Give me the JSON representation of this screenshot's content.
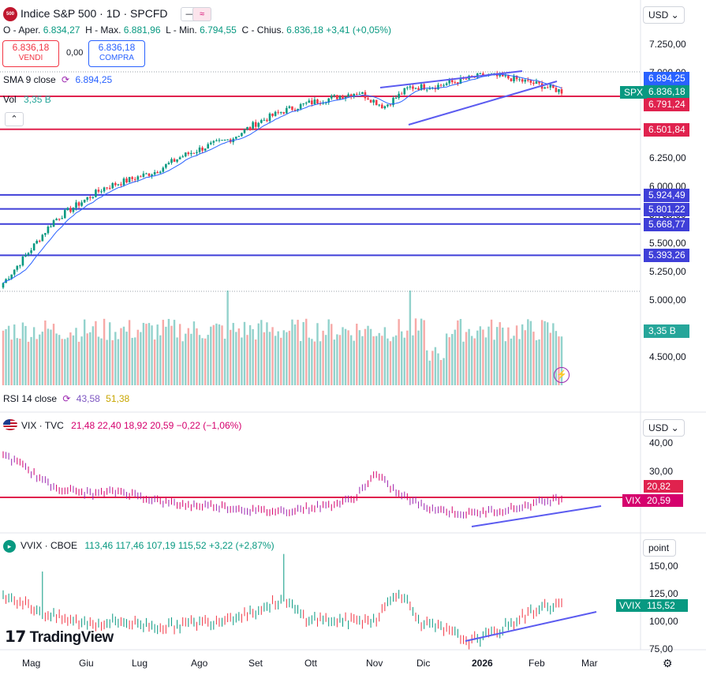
{
  "header": {
    "logo_text": "500",
    "title": "Indice S&P 500 · 1D · SPCFD",
    "currency": "USD",
    "ohlc": {
      "o_label": "O - Aper.",
      "o": "6.834,27",
      "h_label": "H - Max.",
      "h": "6.881,96",
      "l_label": "L - Min.",
      "l": "6.794,55",
      "c_label": "C - Chius.",
      "c": "6.836,18",
      "chg": "+3,41 (+0,05%)"
    },
    "sell": {
      "price": "6.836,18",
      "label": "VENDI"
    },
    "buy": {
      "price": "6.836,18",
      "label": "COMPRA"
    },
    "spread": "0,00",
    "sma_label": "SMA 9 close",
    "sma_value": "6.894,25",
    "vol_label": "Vol",
    "vol_value": "3,35 B"
  },
  "rsi": {
    "label": "RSI 14 close",
    "v1": "43,58",
    "v2": "51,38"
  },
  "vix_header": {
    "title": "VIX · TVC",
    "values": "21,48  22,40  18,92  20,59  −0,22 (−1,06%)",
    "currency": "USD"
  },
  "vvix_header": {
    "title": "VVIX · CBOE",
    "values": "113,46  117,46  107,19  115,52  +3,22 (+2,87%)",
    "unit": "point"
  },
  "price_axis": [
    "7.250,00",
    "7.000,00",
    "6.750,00",
    "6.500,00",
    "6.250,00",
    "6.000,00",
    "5.750,00",
    "5.500,00",
    "5.250,00",
    "5.000,00",
    "4.750,00",
    "4.500,00"
  ],
  "price_tags": [
    {
      "text": "6.894,25",
      "color": "#2962ff",
      "kind": "sma"
    },
    {
      "text": "6.836,18",
      "color": "#089981",
      "kind": "last"
    },
    {
      "text": "6.791,24",
      "color": "#e0224e",
      "kind": "level"
    },
    {
      "text": "6.501,84",
      "color": "#e0224e",
      "kind": "level"
    },
    {
      "text": "5.924,49",
      "color": "#3f3fd8",
      "kind": "level"
    },
    {
      "text": "5.801,22",
      "color": "#3f3fd8",
      "kind": "level"
    },
    {
      "text": "5.668,77",
      "color": "#3f3fd8",
      "kind": "level"
    },
    {
      "text": "5.393,26",
      "color": "#3f3fd8",
      "kind": "level"
    },
    {
      "text": "3,35 B",
      "color": "#26a69a",
      "kind": "volume"
    }
  ],
  "symbol_tags": {
    "spx": "SPX",
    "vix": "VIX",
    "vvix": "VVIX"
  },
  "vix_axis": [
    "40,00",
    "30,00"
  ],
  "vix_tags": [
    "20,82",
    "20,59"
  ],
  "vvix_axis": [
    "150,00",
    "125,00",
    "100,00",
    "75,00"
  ],
  "vvix_tag": "115,52",
  "x_axis": [
    "Mag",
    "Giu",
    "Lug",
    "Ago",
    "Set",
    "Ott",
    "Nov",
    "Dic",
    "2026",
    "Feb",
    "Mar"
  ],
  "watermark": "TradingView",
  "colors": {
    "up": "#089981",
    "down": "#f23645",
    "level_red": "#e0224e",
    "level_blue": "#3f3fd8",
    "trend": "#5b5bf0",
    "sma": "#2962ff"
  },
  "chart_data": [
    {
      "type": "candlestick",
      "name": "Indice S&P 500",
      "ylim": [
        4400,
        7300
      ],
      "x": [
        "Mag",
        "Giu",
        "Lug",
        "Ago",
        "Set",
        "Ott",
        "Nov",
        "Dic",
        "2026",
        "Feb"
      ],
      "close_path": [
        5150,
        5420,
        5700,
        5850,
        5990,
        6060,
        6130,
        6260,
        6350,
        6420,
        6560,
        6660,
        6730,
        6780,
        6830,
        6700,
        6870,
        6880,
        6930,
        6980,
        6950,
        6900,
        6836
      ],
      "horizontal_levels": [
        6791.24,
        6501.84,
        5924.49,
        5801.22,
        5668.77,
        5393.26
      ],
      "sma9_last": 6894.25,
      "last": 6836.18
    },
    {
      "type": "bar",
      "name": "Vol",
      "last": 3.35,
      "unit": "B"
    },
    {
      "type": "line",
      "name": "VIX",
      "ylim": [
        14,
        42
      ],
      "path": [
        36,
        31,
        25,
        23,
        22,
        23,
        21,
        19,
        18,
        18,
        17,
        16,
        16,
        17,
        18,
        20,
        29,
        22,
        18,
        16,
        15,
        16,
        17,
        19,
        20.59
      ],
      "horizontal_level": 20.82,
      "last": 20.59
    },
    {
      "type": "line",
      "name": "VVIX",
      "ylim": [
        72,
        160
      ],
      "path": [
        125,
        115,
        105,
        100,
        98,
        100,
        97,
        95,
        98,
        100,
        105,
        110,
        120,
        103,
        101,
        100,
        102,
        128,
        98,
        92,
        82,
        88,
        100,
        112,
        115.52
      ],
      "last": 115.52
    }
  ]
}
